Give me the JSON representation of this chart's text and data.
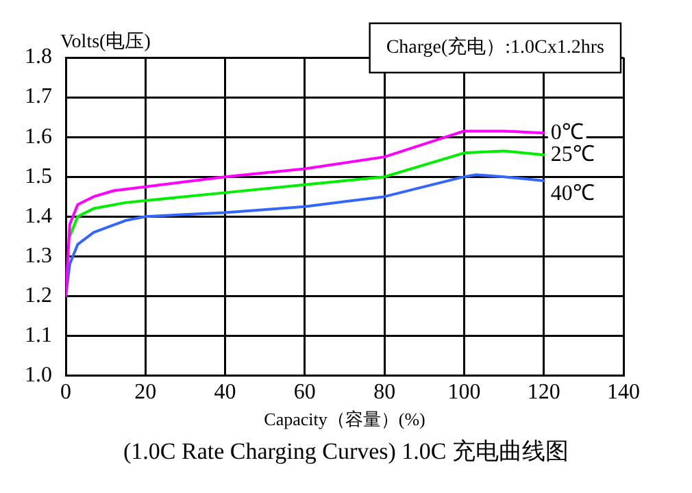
{
  "chart_data": {
    "type": "line",
    "title": "(1.0C Rate Charging Curves) 1.0C 充电曲线图",
    "xlabel": "Capacity（容量）(%)",
    "ylabel": "Volts(电压)",
    "annotations": [
      "Charge(充电）:1.0Cx1.2hrs"
    ],
    "series": [
      {
        "name": "0℃",
        "color": "#ff00ff",
        "x": [
          0,
          1,
          3,
          7,
          12,
          20,
          40,
          60,
          80,
          100,
          110,
          120
        ],
        "values": [
          1.2,
          1.38,
          1.43,
          1.45,
          1.465,
          1.475,
          1.5,
          1.52,
          1.55,
          1.615,
          1.615,
          1.61
        ]
      },
      {
        "name": "25℃",
        "color": "#00ee00",
        "x": [
          1,
          3,
          7,
          15,
          20,
          40,
          60,
          80,
          100,
          110,
          120
        ],
        "values": [
          1.35,
          1.4,
          1.42,
          1.435,
          1.44,
          1.46,
          1.48,
          1.5,
          1.56,
          1.565,
          1.555
        ]
      },
      {
        "name": "40℃",
        "color": "#3366ff",
        "x": [
          0,
          1,
          3,
          7,
          15,
          20,
          40,
          60,
          80,
          100,
          103,
          110,
          120
        ],
        "values": [
          1.2,
          1.28,
          1.33,
          1.36,
          1.39,
          1.4,
          1.41,
          1.425,
          1.45,
          1.5,
          1.505,
          1.5,
          1.49
        ]
      }
    ],
    "xlim": [
      0,
      140
    ],
    "xticks": [
      0,
      20,
      40,
      60,
      80,
      100,
      120,
      140
    ],
    "ylim": [
      1.0,
      1.8
    ],
    "yticks": [
      {
        "value": 1.0,
        "label": "1.0"
      },
      {
        "value": 1.1,
        "label": "1.1"
      },
      {
        "value": 1.2,
        "label": "1.2"
      },
      {
        "value": 1.3,
        "label": "1.3"
      },
      {
        "value": 1.4,
        "label": "1.4"
      },
      {
        "value": 1.5,
        "label": "1.5"
      },
      {
        "value": 1.6,
        "label": "1.6"
      },
      {
        "value": 1.7,
        "label": "1.7"
      },
      {
        "value": 1.8,
        "label": "1.8"
      }
    ],
    "grid": true,
    "legend": false,
    "marker": "none",
    "line_style": "solid"
  }
}
